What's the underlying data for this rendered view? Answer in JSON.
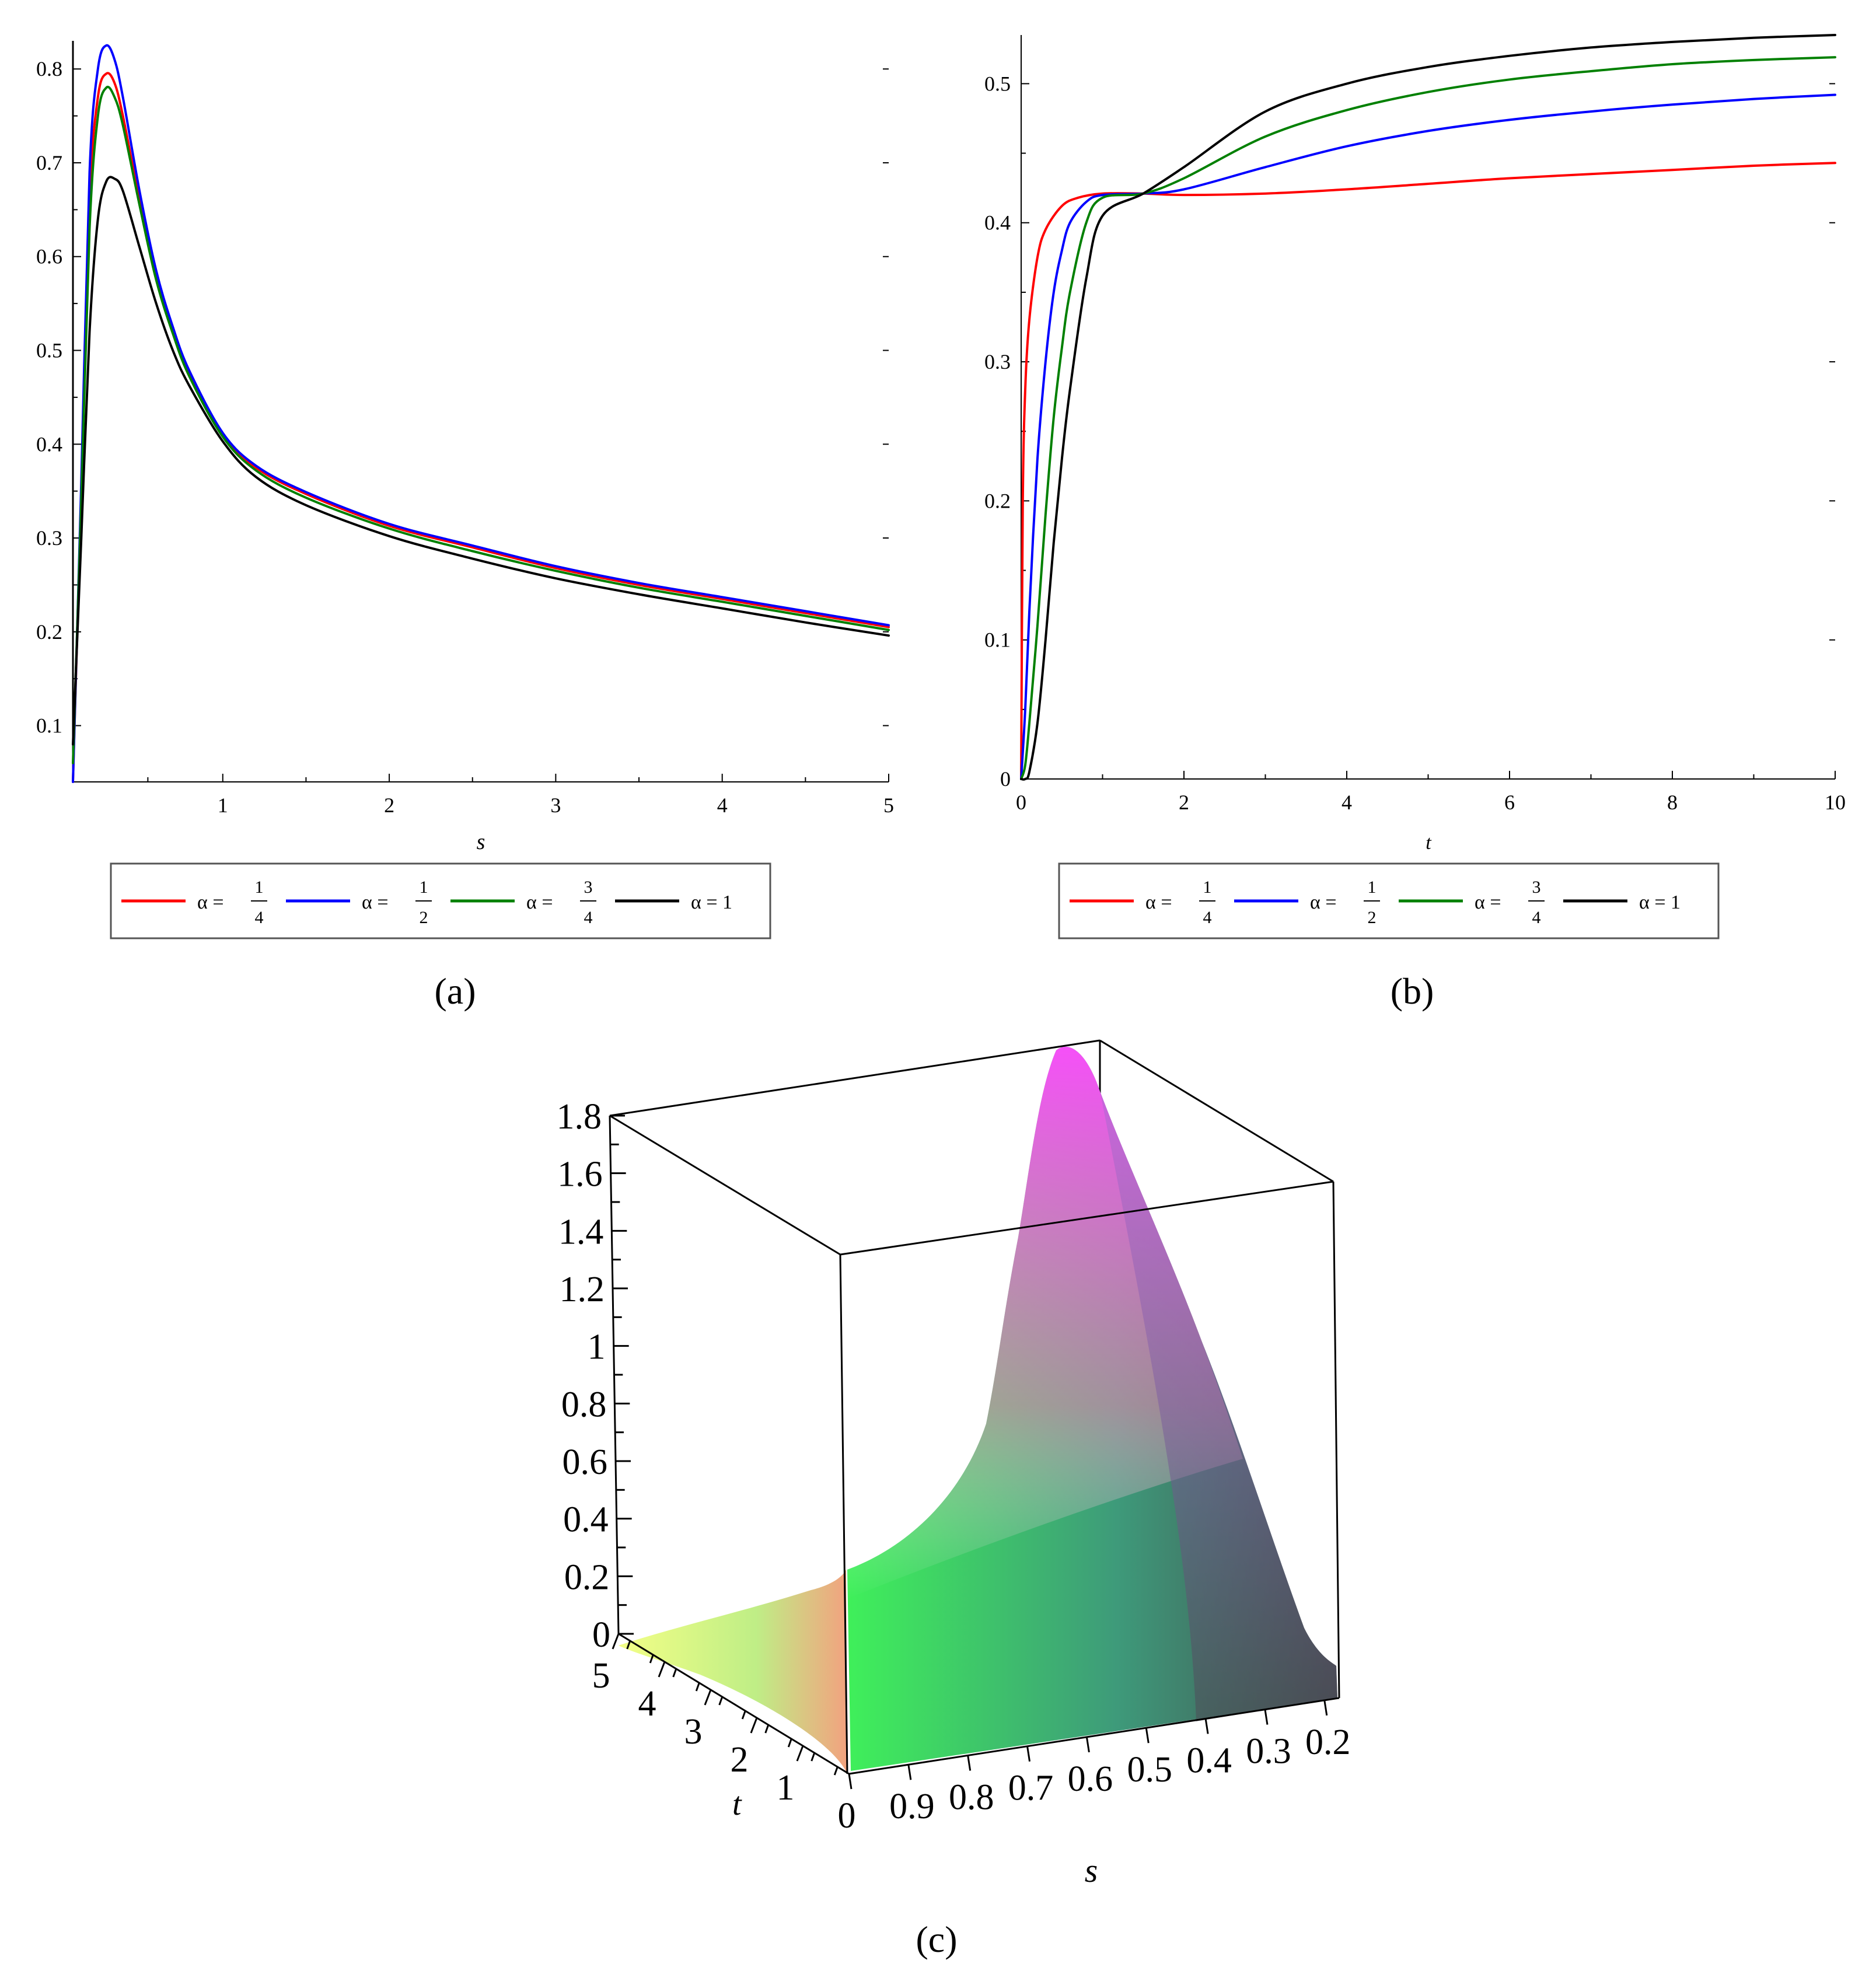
{
  "colors": {
    "red": "#ff0000",
    "blue": "#0000ff",
    "green": "#008000",
    "black": "#000000"
  },
  "legend": {
    "items": [
      {
        "name": "α = 1/4",
        "prefix": "α =",
        "num": "1",
        "den": "4",
        "color": "#ff0000"
      },
      {
        "name": "α = 1/2",
        "prefix": "α =",
        "num": "1",
        "den": "2",
        "color": "#0000ff"
      },
      {
        "name": "α = 3/4",
        "prefix": "α =",
        "num": "3",
        "den": "4",
        "color": "#008000"
      },
      {
        "name": "α = 1",
        "prefix": "α = 1",
        "num": "",
        "den": "",
        "color": "#000000"
      }
    ]
  },
  "chart_data": [
    {
      "id": "a",
      "type": "line",
      "panel_label": "(a)",
      "xlabel": "s",
      "ylabel": "",
      "xlim": [
        0.1,
        5
      ],
      "ylim": [
        0.04,
        0.83
      ],
      "xticks": [
        1,
        2,
        3,
        4,
        5
      ],
      "xtick_labels": [
        "1",
        "2",
        "3",
        "4",
        "5"
      ],
      "yticks": [
        0.1,
        0.2,
        0.3,
        0.4,
        0.5,
        0.6,
        0.7,
        0.8
      ],
      "ytick_labels": [
        "0.1",
        "0.2",
        "0.3",
        "0.4",
        "0.5",
        "0.6",
        "0.7",
        "0.8"
      ],
      "legend_position": "bottom",
      "series": [
        {
          "name": "α = 1/4",
          "color": "#ff0000",
          "x": [
            0.1,
            0.15,
            0.2,
            0.25,
            0.3,
            0.35,
            0.4,
            0.5,
            0.6,
            0.7,
            0.8,
            1,
            1.2,
            1.5,
            2,
            2.5,
            3,
            3.5,
            4,
            4.5,
            5
          ],
          "y": [
            0.04,
            0.35,
            0.66,
            0.77,
            0.795,
            0.785,
            0.75,
            0.66,
            0.58,
            0.52,
            0.475,
            0.41,
            0.375,
            0.347,
            0.313,
            0.29,
            0.268,
            0.25,
            0.235,
            0.22,
            0.205
          ]
        },
        {
          "name": "α = 1/2",
          "color": "#0000ff",
          "x": [
            0.1,
            0.15,
            0.2,
            0.25,
            0.3,
            0.35,
            0.4,
            0.5,
            0.6,
            0.7,
            0.8,
            1,
            1.2,
            1.5,
            2,
            2.5,
            3,
            3.5,
            4,
            4.5,
            5
          ],
          "y": [
            0.04,
            0.36,
            0.69,
            0.8,
            0.825,
            0.81,
            0.77,
            0.67,
            0.585,
            0.525,
            0.478,
            0.412,
            0.377,
            0.349,
            0.315,
            0.292,
            0.27,
            0.252,
            0.237,
            0.222,
            0.207
          ]
        },
        {
          "name": "α = 3/4",
          "color": "#008000",
          "x": [
            0.1,
            0.15,
            0.2,
            0.25,
            0.3,
            0.35,
            0.4,
            0.5,
            0.6,
            0.7,
            0.8,
            1,
            1.2,
            1.5,
            2,
            2.5,
            3,
            3.5,
            4,
            4.5,
            5
          ],
          "y": [
            0.06,
            0.34,
            0.63,
            0.75,
            0.78,
            0.77,
            0.74,
            0.655,
            0.575,
            0.518,
            0.472,
            0.408,
            0.372,
            0.343,
            0.31,
            0.286,
            0.265,
            0.247,
            0.232,
            0.217,
            0.202
          ]
        },
        {
          "name": "α = 1",
          "color": "#000000",
          "x": [
            0.1,
            0.15,
            0.2,
            0.25,
            0.3,
            0.35,
            0.4,
            0.5,
            0.6,
            0.7,
            0.8,
            1,
            1.2,
            1.5,
            2,
            2.5,
            3,
            3.5,
            4,
            4.5,
            5
          ],
          "y": [
            0.08,
            0.3,
            0.52,
            0.64,
            0.68,
            0.683,
            0.67,
            0.61,
            0.55,
            0.5,
            0.462,
            0.403,
            0.365,
            0.335,
            0.302,
            0.278,
            0.257,
            0.24,
            0.225,
            0.21,
            0.196
          ]
        }
      ]
    },
    {
      "id": "b",
      "type": "line",
      "panel_label": "(b)",
      "xlabel": "t",
      "ylabel": "",
      "xlim": [
        0,
        10
      ],
      "ylim": [
        0,
        0.535
      ],
      "xticks": [
        0,
        2,
        4,
        6,
        8,
        10
      ],
      "xtick_labels": [
        "0",
        "2",
        "4",
        "6",
        "8",
        "10"
      ],
      "yticks": [
        0,
        0.1,
        0.2,
        0.3,
        0.4,
        0.5
      ],
      "ytick_labels": [
        "0",
        "0.1",
        "0.2",
        "0.3",
        "0.4",
        "0.5"
      ],
      "legend_position": "bottom",
      "series": [
        {
          "name": "α = 1/4",
          "color": "#ff0000",
          "x": [
            0,
            0.02,
            0.05,
            0.1,
            0.2,
            0.3,
            0.5,
            0.7,
            1,
            1.5,
            2,
            3,
            4,
            5,
            6,
            7,
            8,
            9,
            10
          ],
          "y": [
            0,
            0.2,
            0.28,
            0.33,
            0.375,
            0.395,
            0.412,
            0.418,
            0.421,
            0.421,
            0.42,
            0.421,
            0.424,
            0.428,
            0.432,
            0.435,
            0.438,
            0.441,
            0.443
          ]
        },
        {
          "name": "α = 1/2",
          "color": "#0000ff",
          "x": [
            0,
            0.05,
            0.1,
            0.2,
            0.3,
            0.4,
            0.5,
            0.6,
            0.8,
            1,
            1.5,
            2,
            3,
            4,
            5,
            6,
            7,
            8,
            9,
            10
          ],
          "y": [
            0,
            0.05,
            0.12,
            0.23,
            0.3,
            0.35,
            0.38,
            0.4,
            0.415,
            0.42,
            0.421,
            0.424,
            0.44,
            0.455,
            0.466,
            0.474,
            0.48,
            0.485,
            0.489,
            0.492
          ]
        },
        {
          "name": "α = 3/4",
          "color": "#008000",
          "x": [
            0,
            0.05,
            0.1,
            0.2,
            0.3,
            0.4,
            0.5,
            0.6,
            0.8,
            1,
            1.5,
            2,
            3,
            4,
            5,
            6,
            7,
            8,
            9,
            10
          ],
          "y": [
            0,
            0.01,
            0.04,
            0.11,
            0.19,
            0.26,
            0.31,
            0.35,
            0.4,
            0.418,
            0.421,
            0.432,
            0.462,
            0.481,
            0.494,
            0.503,
            0.509,
            0.514,
            0.517,
            0.519
          ]
        },
        {
          "name": "α = 1",
          "color": "#000000",
          "x": [
            0,
            0.05,
            0.1,
            0.2,
            0.3,
            0.4,
            0.5,
            0.6,
            0.8,
            1,
            1.5,
            2,
            3,
            4,
            5,
            6,
            7,
            8,
            9,
            10
          ],
          "y": [
            0,
            0.0,
            0.005,
            0.04,
            0.1,
            0.17,
            0.23,
            0.28,
            0.36,
            0.405,
            0.421,
            0.44,
            0.48,
            0.5,
            0.512,
            0.52,
            0.526,
            0.53,
            0.533,
            0.535
          ]
        }
      ]
    },
    {
      "id": "c",
      "type": "surface",
      "panel_label": "(c)",
      "xlabel": "s",
      "ylabel": "t",
      "zlabel": "",
      "s_range": [
        0.15,
        1
      ],
      "t_range": [
        0,
        5
      ],
      "z_range": [
        0,
        1.8
      ],
      "z_tick_labels": [
        "0",
        "0.2",
        "0.4",
        "0.6",
        "0.8",
        "1",
        "1.2",
        "1.4",
        "1.6",
        "1.8"
      ],
      "t_tick_labels": [
        "1",
        "2",
        "3",
        "4",
        "5"
      ],
      "s_tick_labels": [
        "0",
        "0.9",
        "0.8",
        "0.7",
        "0.6",
        "0.5",
        "0.4",
        "0.3",
        "0.2"
      ],
      "peak": {
        "s": 0.5,
        "t": 5,
        "z": 1.8
      },
      "colormap": "yellow-green-magenta-gray"
    }
  ]
}
